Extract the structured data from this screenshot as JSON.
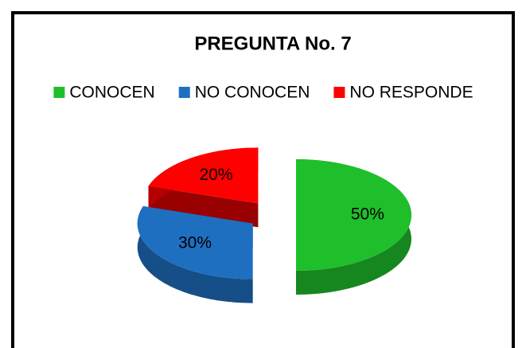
{
  "chart_data": {
    "type": "pie",
    "title": "PREGUNTA No. 7",
    "categories": [
      "CONOCEN",
      "NO CONOCEN",
      "NO RESPONDE"
    ],
    "values": [
      50,
      30,
      20
    ],
    "value_labels": [
      "50%",
      "30%",
      "20%"
    ],
    "colors": [
      "#1fbf2b",
      "#1f6fc1",
      "#ff0000"
    ],
    "legend": "top"
  }
}
